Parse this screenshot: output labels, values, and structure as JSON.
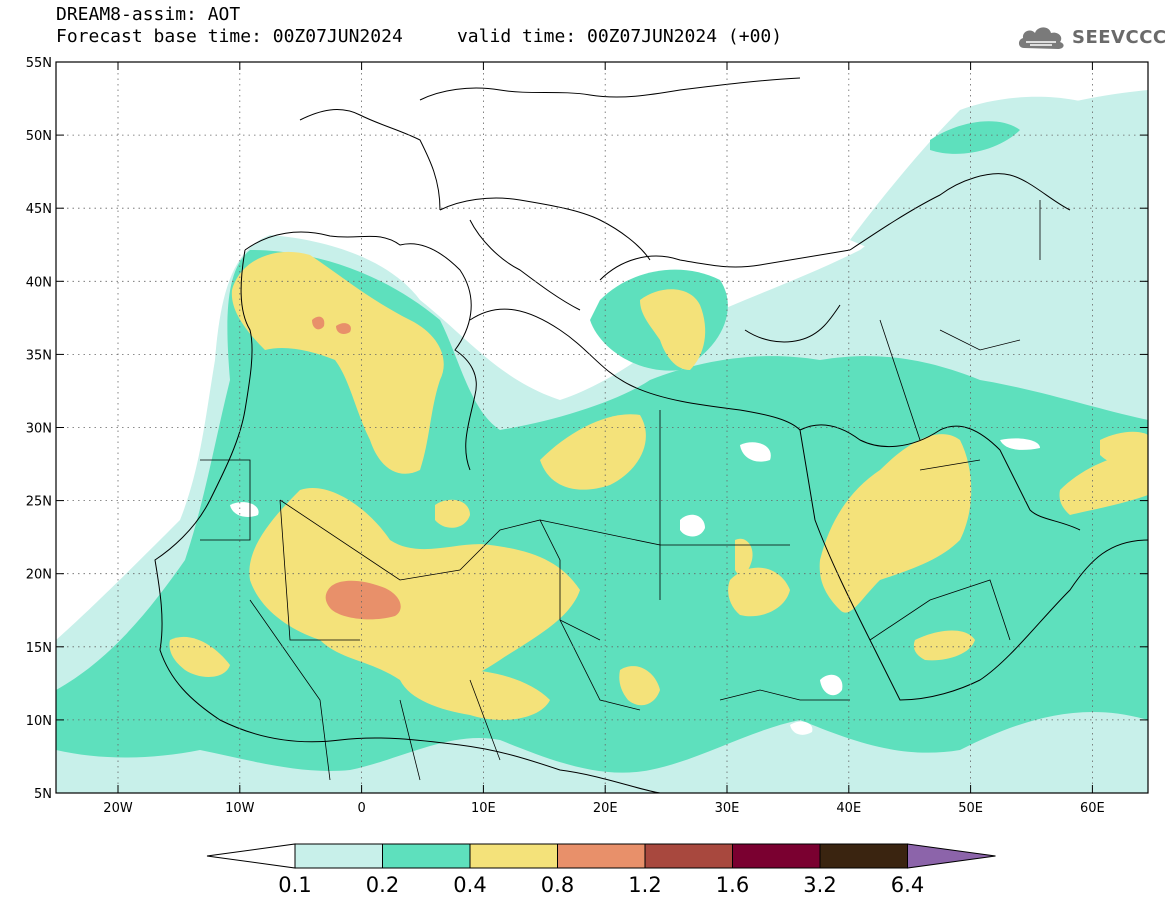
{
  "header": {
    "title_line1": "DREAM8-assim: AOT",
    "title_line2": "Forecast base time: 00Z07JUN2024     valid time: 00Z07JUN2024 (+00)"
  },
  "logo": {
    "text": "SEEVCCC",
    "icon": "cloud-icon"
  },
  "map": {
    "lat_labels": [
      "55N",
      "50N",
      "45N",
      "40N",
      "35N",
      "30N",
      "25N",
      "20N",
      "15N",
      "10N",
      "5N"
    ],
    "lon_labels": [
      "20W",
      "10W",
      "0",
      "10E",
      "20E",
      "30E",
      "40E",
      "50E",
      "60E"
    ],
    "colors": {
      "c1": "#c8f0ea",
      "c2": "#5ee0bd",
      "c3": "#f4e27a",
      "c4": "#e8906a",
      "land_line": "#000000"
    }
  },
  "colorbar": {
    "labels": [
      "0.1",
      "0.2",
      "0.4",
      "0.8",
      "1.2",
      "1.6",
      "3.2",
      "6.4"
    ],
    "colors": [
      "#ffffff",
      "#c8f0ea",
      "#5ee0bd",
      "#f4e27a",
      "#e8906a",
      "#a8483e",
      "#7a0030",
      "#3a2410",
      "#8c64aa"
    ]
  }
}
